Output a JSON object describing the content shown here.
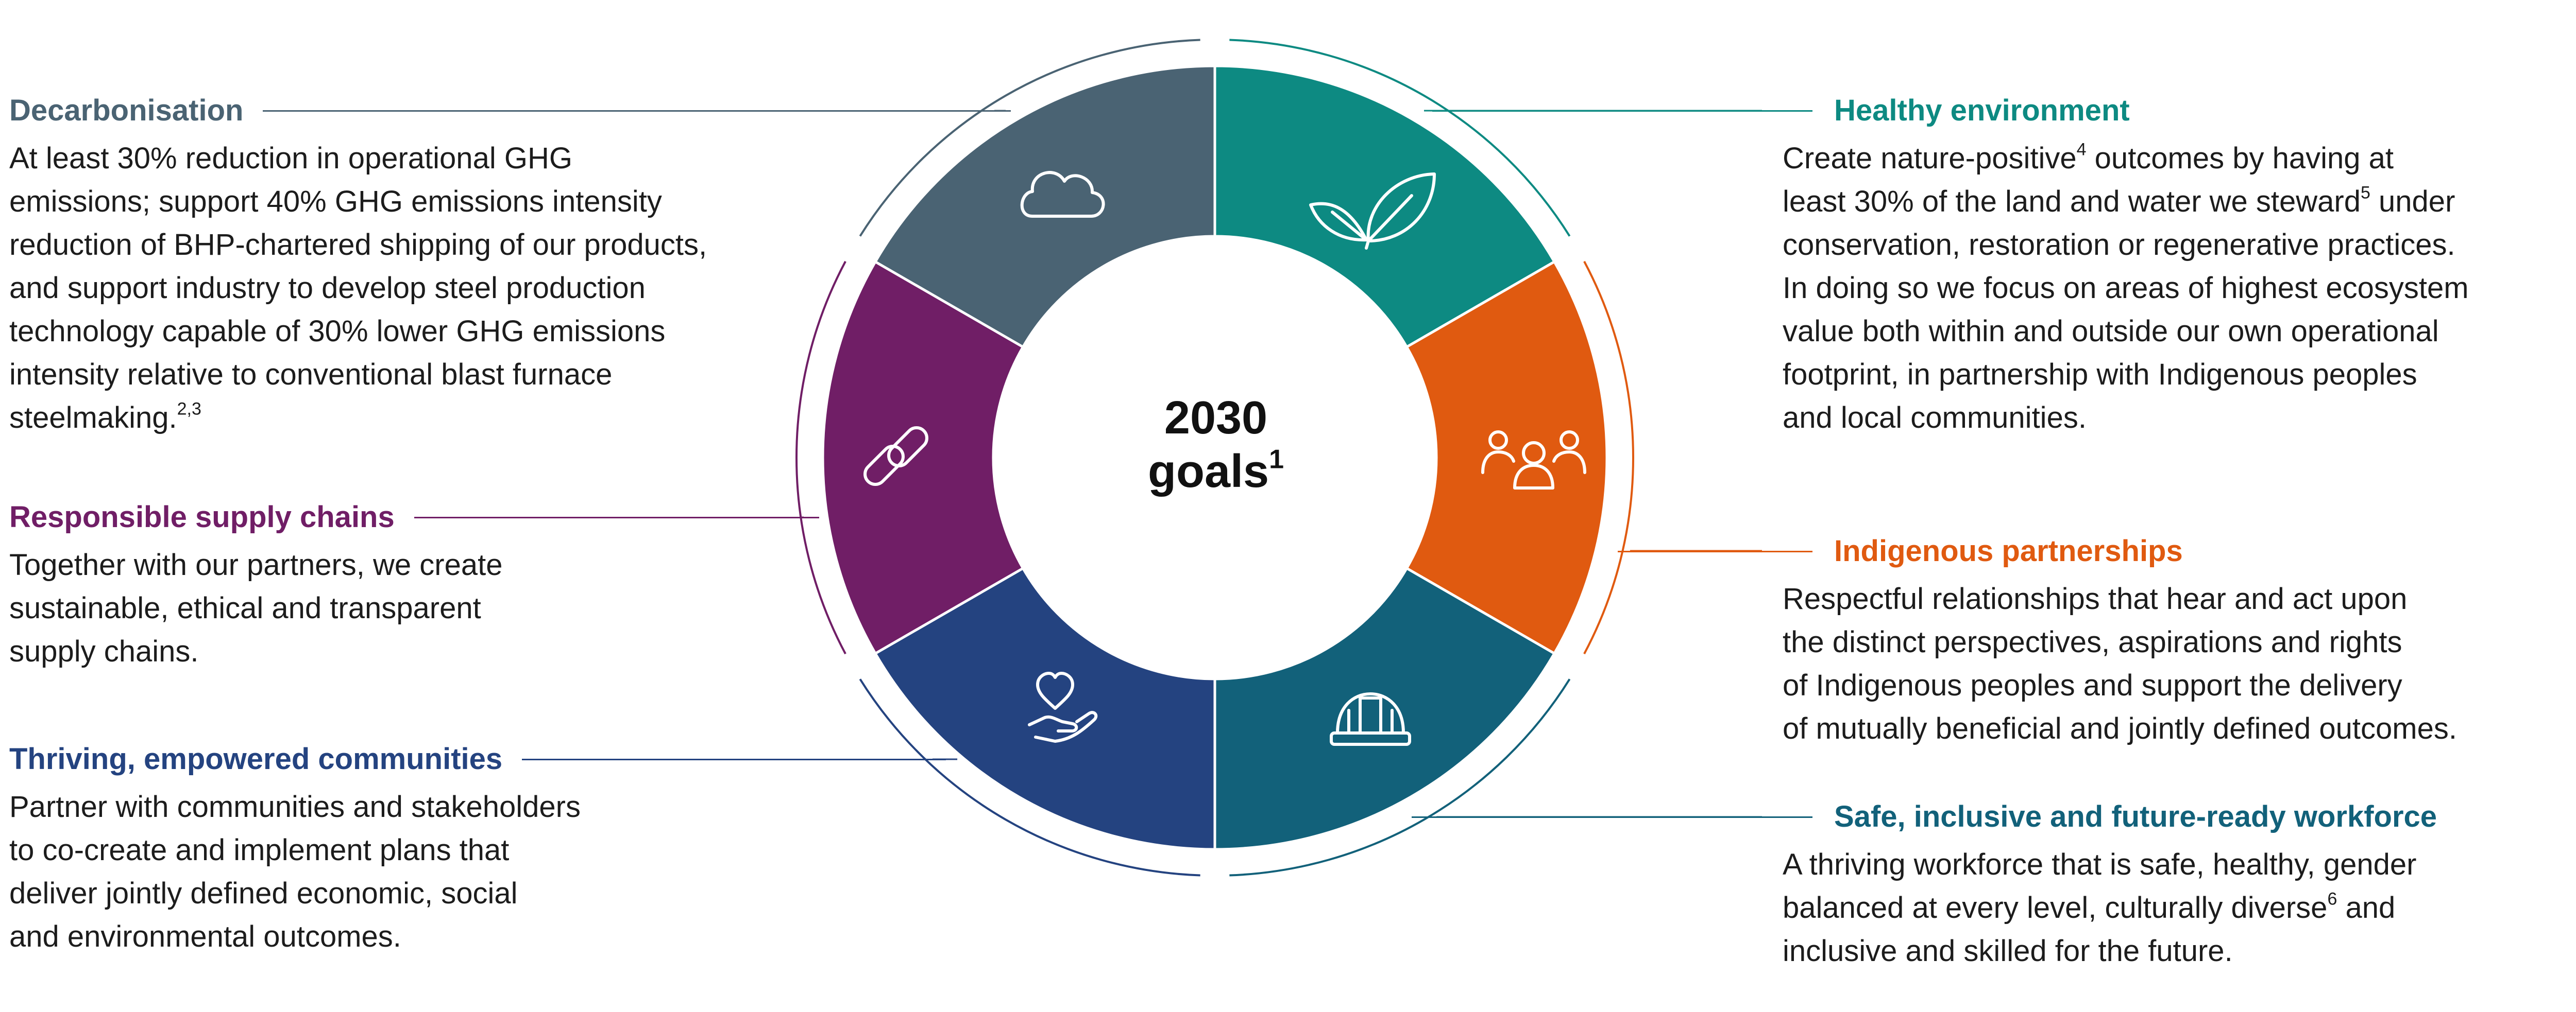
{
  "center": {
    "title_line1": "2030",
    "title_line2": "goals",
    "title_sup": "1"
  },
  "goals": {
    "decarbonisation": {
      "title": "Decarbonisation",
      "color": "#4a6373",
      "icon": "cloud-icon",
      "lines": [
        "At least 30% reduction in operational GHG",
        "emissions; support 40% GHG emissions intensity",
        "reduction of BHP-chartered shipping of our products,",
        "and support industry to develop steel production",
        "technology capable of 30% lower GHG emissions",
        "intensity relative to conventional blast furnace"
      ],
      "last_line": "steelmaking.",
      "last_sup": "2,3"
    },
    "responsible_supply": {
      "title": "Responsible supply chains",
      "color": "#701e66",
      "icon": "chain-link-icon",
      "lines": [
        "Together with our partners, we create",
        "sustainable, ethical and transparent",
        "supply chains."
      ]
    },
    "thriving_communities": {
      "title": "Thriving, empowered communities",
      "color": "#244380",
      "icon": "hand-heart-icon",
      "lines": [
        "Partner with communities and stakeholders",
        "to co-create and implement plans that",
        "deliver jointly defined economic, social",
        "and environmental outcomes."
      ]
    },
    "healthy_environment": {
      "title": "Healthy environment",
      "color": "#0d8a82",
      "icon": "leaves-icon",
      "line1_pre": "Create nature-positive",
      "line1_sup": "4",
      "line1_post": " outcomes by having at",
      "line2_pre": "least 30% of the land and water we steward",
      "line2_sup": "5",
      "line2_post": " under",
      "lines": [
        "conservation, restoration or regenerative practices.",
        "In doing so we focus on areas of highest ecosystem",
        "value both within and outside our own operational",
        "footprint, in partnership with Indigenous peoples",
        "and local communities."
      ]
    },
    "indigenous_partnerships": {
      "title": "Indigenous partnerships",
      "color": "#e05a10",
      "icon": "people-group-icon",
      "lines": [
        "Respectful relationships that hear and act upon",
        "the distinct perspectives, aspirations and rights",
        "of Indigenous peoples and support the delivery",
        "of mutually beneficial and jointly defined outcomes."
      ]
    },
    "workforce": {
      "title": "Safe, inclusive and future-ready workforce",
      "color": "#12617a",
      "icon": "hard-hat-icon",
      "line1": "A thriving workforce that is safe, healthy, gender",
      "line2_pre": "balanced at every level, culturally diverse",
      "line2_sup": "6",
      "line2_post": " and",
      "line3": "inclusive and skilled for the future."
    }
  }
}
